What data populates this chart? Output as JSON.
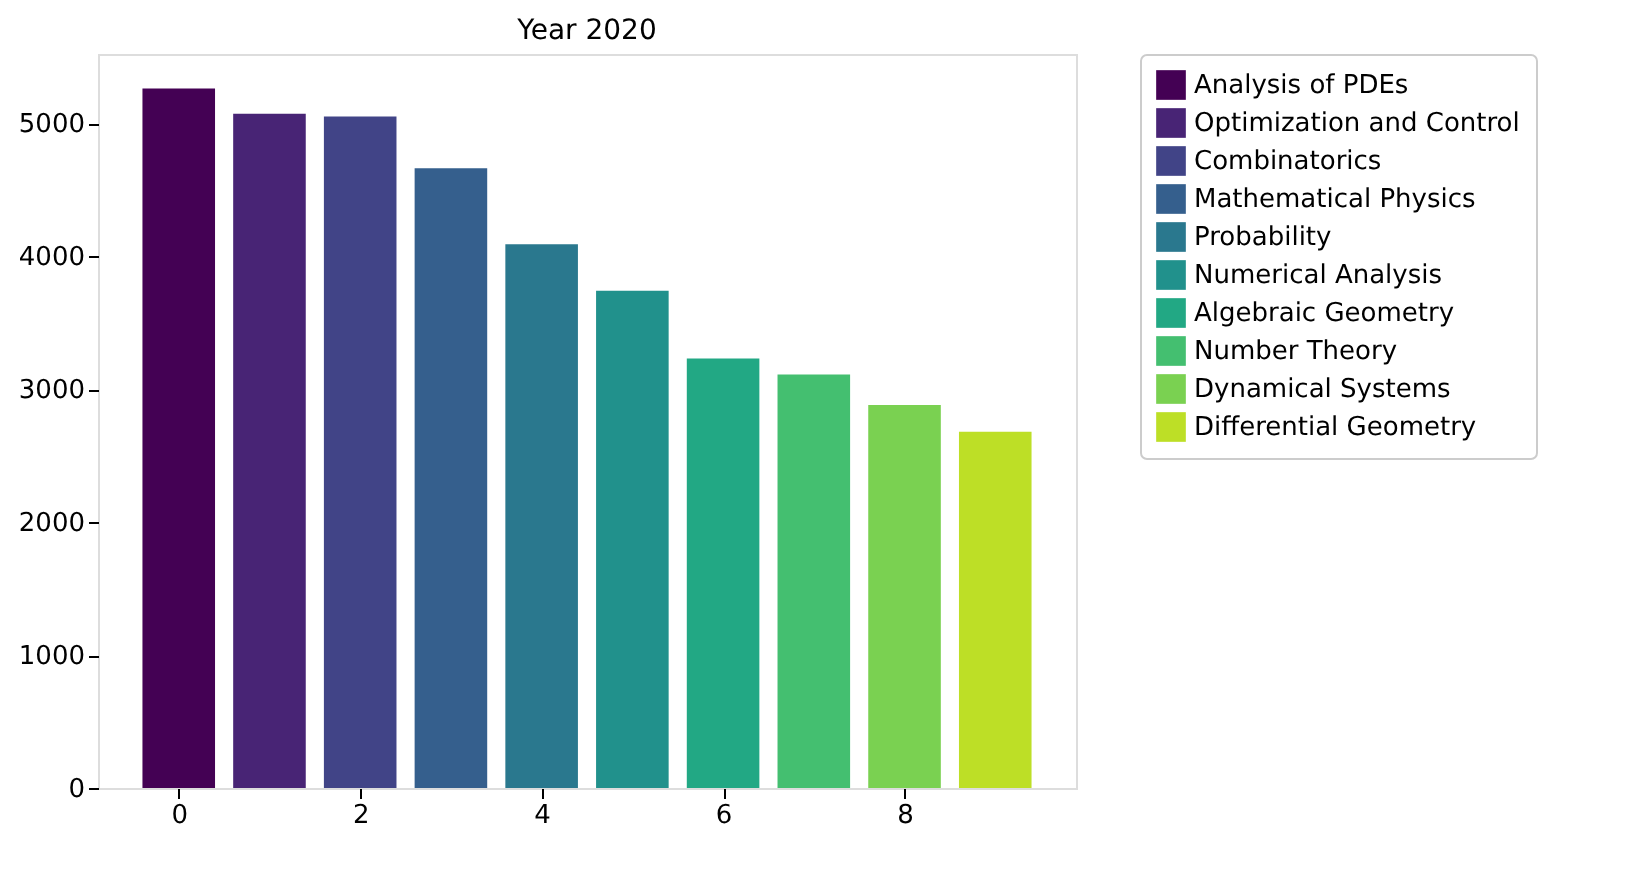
{
  "chart_data": {
    "type": "bar",
    "title": "Year 2020",
    "series": [
      {
        "name": "Analysis of PDEs",
        "color": "#440154",
        "x": [
          0
        ],
        "values": [
          5260
        ]
      },
      {
        "name": "Optimization and Control",
        "color": "#482475",
        "x": [
          1
        ],
        "values": [
          5070
        ]
      },
      {
        "name": "Combinatorics",
        "color": "#414487",
        "x": [
          2
        ],
        "values": [
          5050
        ]
      },
      {
        "name": "Mathematical Physics",
        "color": "#355f8d",
        "x": [
          3
        ],
        "values": [
          4660
        ]
      },
      {
        "name": "Probability",
        "color": "#2a788e",
        "x": [
          4
        ],
        "values": [
          4090
        ]
      },
      {
        "name": "Numerical Analysis",
        "color": "#21918c",
        "x": [
          5
        ],
        "values": [
          3740
        ]
      },
      {
        "name": "Algebraic Geometry",
        "color": "#22a884",
        "x": [
          6
        ],
        "values": [
          3230
        ]
      },
      {
        "name": "Number Theory",
        "color": "#44bf70",
        "x": [
          7
        ],
        "values": [
          3110
        ]
      },
      {
        "name": "Dynamical Systems",
        "color": "#7ad151",
        "x": [
          8
        ],
        "values": [
          2880
        ]
      },
      {
        "name": "Differential Geometry",
        "color": "#bddf26",
        "x": [
          9
        ],
        "values": [
          2680
        ]
      }
    ],
    "xlim": [
      -0.89,
      9.89
    ],
    "xticks": [
      0,
      2,
      4,
      6,
      8
    ],
    "ylim": [
      0,
      5520
    ],
    "yticks": [
      0,
      1000,
      2000,
      3000,
      4000,
      5000
    ],
    "legend": "right",
    "grid": false
  }
}
